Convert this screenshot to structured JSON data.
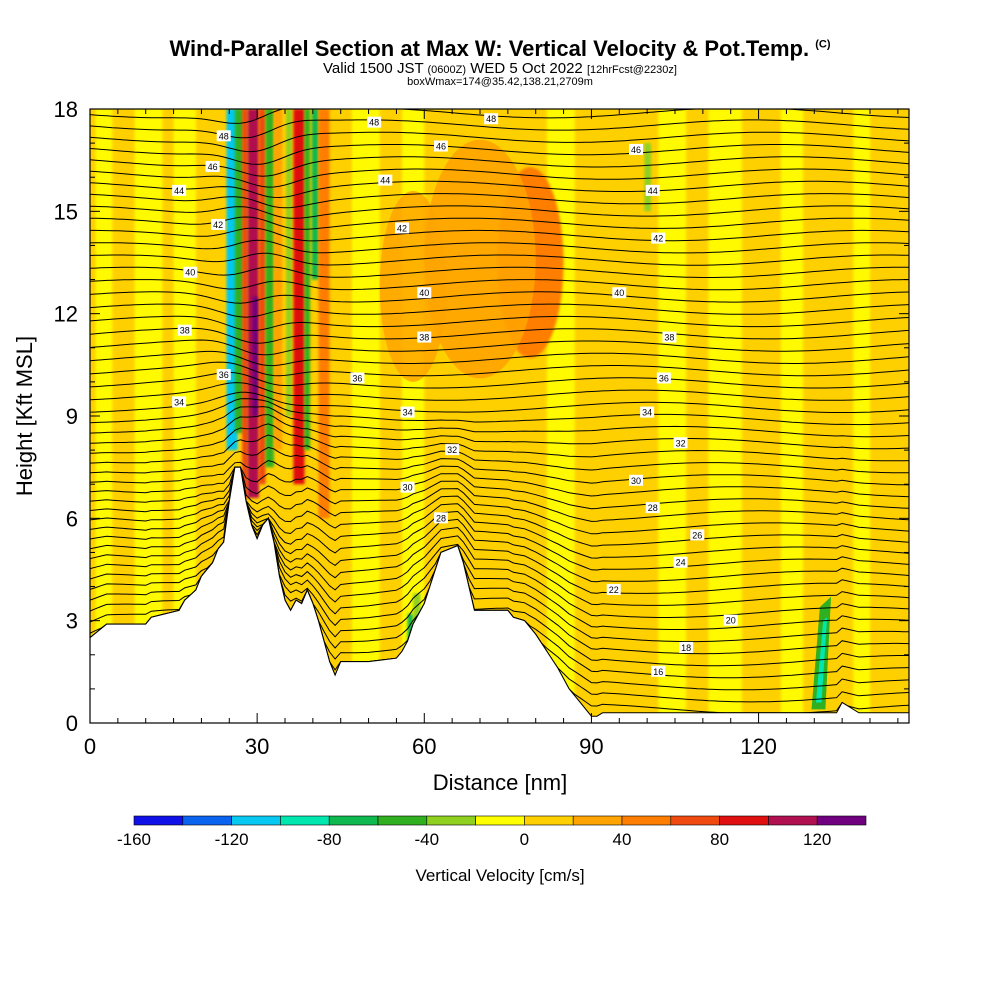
{
  "header": {
    "title": "Wind-Parallel Section at Max W: Vertical Velocity & Pot.Temp.",
    "copyright": "(C)",
    "valid_a": "Valid 1500 JST",
    "valid_b": "(0600Z)",
    "valid_c": "WED 5 Oct 2022",
    "valid_d": "[12hrFcst@2230z]",
    "box": "boxWmax=174@35.42,138.21,2709m"
  },
  "chart_data": {
    "type": "heatmap",
    "xlabel": "Distance [nm]",
    "ylabel": "Height [Kft MSL]",
    "xlim": [
      0,
      147
    ],
    "ylim": [
      0,
      18
    ],
    "x_ticks": [
      0,
      30,
      60,
      90,
      120
    ],
    "y_ticks": [
      0,
      3,
      6,
      9,
      12,
      15,
      18
    ],
    "colorbar": {
      "label": "Vertical Velocity [cm/s]",
      "levels": [
        -160,
        -140,
        -120,
        -100,
        -80,
        -60,
        -40,
        -20,
        0,
        20,
        40,
        60,
        80,
        100,
        120,
        140
      ],
      "tick_labels": [
        "-160",
        "-120",
        "-80",
        "-40",
        "0",
        "40",
        "80",
        "120"
      ],
      "colors": [
        "#1010e8",
        "#0a64f0",
        "#06c8f0",
        "#00e8b0",
        "#10b850",
        "#30b020",
        "#90d020",
        "#ffff00",
        "#ffd000",
        "#ffa400",
        "#ff7e00",
        "#f04a10",
        "#e01010",
        "#b01050",
        "#700080"
      ]
    },
    "terrain": [
      [
        0,
        2.5
      ],
      [
        3,
        2.9
      ],
      [
        10,
        2.9
      ],
      [
        11,
        3.1
      ],
      [
        16,
        3.3
      ],
      [
        17,
        3.6
      ],
      [
        19,
        3.9
      ],
      [
        20,
        4.3
      ],
      [
        22,
        4.7
      ],
      [
        23,
        5.1
      ],
      [
        24,
        5.3
      ],
      [
        25,
        6.5
      ],
      [
        26,
        7.5
      ],
      [
        27,
        7.5
      ],
      [
        28,
        6.5
      ],
      [
        29,
        5.8
      ],
      [
        30,
        5.4
      ],
      [
        31,
        5.8
      ],
      [
        32,
        6.0
      ],
      [
        33,
        5.3
      ],
      [
        34,
        4.3
      ],
      [
        35,
        3.6
      ],
      [
        36,
        3.3
      ],
      [
        37,
        3.6
      ],
      [
        38,
        3.5
      ],
      [
        39,
        3.9
      ],
      [
        40,
        3.5
      ],
      [
        41,
        3.0
      ],
      [
        42,
        2.4
      ],
      [
        43,
        1.8
      ],
      [
        44,
        1.4
      ],
      [
        45,
        1.8
      ],
      [
        50,
        1.8
      ],
      [
        55,
        1.9
      ],
      [
        56,
        2.1
      ],
      [
        57,
        2.4
      ],
      [
        58,
        2.9
      ],
      [
        60,
        3.5
      ],
      [
        63,
        5.0
      ],
      [
        66,
        5.2
      ],
      [
        67,
        4.7
      ],
      [
        68,
        4.0
      ],
      [
        69,
        3.3
      ],
      [
        75,
        3.3
      ],
      [
        76,
        3.1
      ],
      [
        78,
        3.0
      ],
      [
        80,
        2.6
      ],
      [
        82,
        2.1
      ],
      [
        84,
        1.6
      ],
      [
        86,
        1.0
      ],
      [
        88,
        0.6
      ],
      [
        90,
        0.2
      ],
      [
        91,
        0.2
      ],
      [
        92,
        0.3
      ],
      [
        130,
        0.3
      ],
      [
        131,
        0.3
      ],
      [
        132,
        0.3
      ],
      [
        134,
        0.3
      ],
      [
        135,
        0.6
      ],
      [
        138,
        0.3
      ],
      [
        147,
        0.3
      ]
    ],
    "w_features": [
      {
        "x": 29.5,
        "y_bottom": 6.5,
        "y_top": 18,
        "w_peak": 140,
        "note": "updraft core"
      },
      {
        "x": 27.5,
        "y_bottom": 7,
        "y_top": 18,
        "w_peak": -120,
        "note": "downdraft"
      },
      {
        "x": 40,
        "y_bottom": 6,
        "y_top": 18,
        "w_peak": 60
      },
      {
        "x": 79,
        "y_bottom": 11,
        "y_top": 16,
        "w_peak": 50
      },
      {
        "x": 58,
        "y_bottom": 2.2,
        "y_top": 3.8,
        "w_peak": -80
      },
      {
        "x": 131.5,
        "y_bottom": 0.6,
        "y_top": 3.6,
        "w_peak": -100
      }
    ],
    "isentrope_labels": [
      {
        "x": 24,
        "y": 17.2,
        "value": 48
      },
      {
        "x": 51,
        "y": 17.6,
        "value": 48
      },
      {
        "x": 72,
        "y": 17.7,
        "value": 48
      },
      {
        "x": 22,
        "y": 16.3,
        "value": 46
      },
      {
        "x": 63,
        "y": 16.9,
        "value": 46
      },
      {
        "x": 98,
        "y": 16.8,
        "value": 46
      },
      {
        "x": 16,
        "y": 15.6,
        "value": 44
      },
      {
        "x": 53,
        "y": 15.9,
        "value": 44
      },
      {
        "x": 101,
        "y": 15.6,
        "value": 44
      },
      {
        "x": 23,
        "y": 14.6,
        "value": 42
      },
      {
        "x": 56,
        "y": 14.5,
        "value": 42
      },
      {
        "x": 102,
        "y": 14.2,
        "value": 42
      },
      {
        "x": 18,
        "y": 13.2,
        "value": 40
      },
      {
        "x": 60,
        "y": 12.6,
        "value": 40
      },
      {
        "x": 95,
        "y": 12.6,
        "value": 40
      },
      {
        "x": 17,
        "y": 11.5,
        "value": 38
      },
      {
        "x": 60,
        "y": 11.3,
        "value": 38
      },
      {
        "x": 104,
        "y": 11.3,
        "value": 38
      },
      {
        "x": 24,
        "y": 10.2,
        "value": 36
      },
      {
        "x": 48,
        "y": 10.1,
        "value": 36
      },
      {
        "x": 103,
        "y": 10.1,
        "value": 36
      },
      {
        "x": 16,
        "y": 9.4,
        "value": 34
      },
      {
        "x": 57,
        "y": 9.1,
        "value": 34
      },
      {
        "x": 100,
        "y": 9.1,
        "value": 34
      },
      {
        "x": 65,
        "y": 8.0,
        "value": 32
      },
      {
        "x": 106,
        "y": 8.2,
        "value": 32
      },
      {
        "x": 57,
        "y": 6.9,
        "value": 30
      },
      {
        "x": 98,
        "y": 7.1,
        "value": 30
      },
      {
        "x": 63,
        "y": 6.0,
        "value": 28
      },
      {
        "x": 101,
        "y": 6.3,
        "value": 28
      },
      {
        "x": 109,
        "y": 5.5,
        "value": 26
      },
      {
        "x": 106,
        "y": 4.7,
        "value": 24
      },
      {
        "x": 94,
        "y": 3.9,
        "value": 22
      },
      {
        "x": 115,
        "y": 3.0,
        "value": 20
      },
      {
        "x": 107,
        "y": 2.2,
        "value": 18
      },
      {
        "x": 102,
        "y": 1.5,
        "value": 16
      }
    ]
  }
}
